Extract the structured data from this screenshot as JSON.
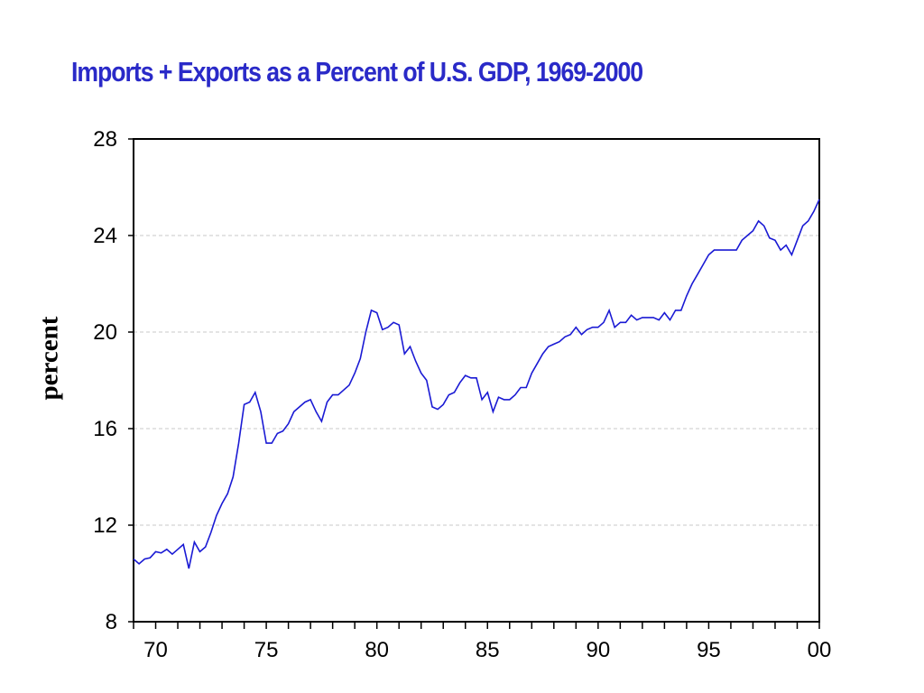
{
  "chart_data": {
    "type": "line",
    "title": "Imports + Exports as a Percent of U.S. GDP, 1969-2000",
    "xlabel": "",
    "ylabel": "percent",
    "xlim": [
      1969,
      2000
    ],
    "ylim": [
      8,
      28
    ],
    "x_ticks": [
      1970,
      1975,
      1980,
      1985,
      1990,
      1995,
      2000
    ],
    "x_tick_labels": [
      "70",
      "75",
      "80",
      "85",
      "90",
      "95",
      "00"
    ],
    "y_ticks": [
      8,
      12,
      16,
      20,
      24,
      28
    ],
    "y_tick_labels": [
      "8",
      "12",
      "16",
      "20",
      "24",
      "28"
    ],
    "grid": "horizontal dashed",
    "colors": {
      "line": "#1a1ad4",
      "title": "#2a2ac8",
      "grid": "#c8c8c8",
      "frame": "#000000"
    },
    "series": [
      {
        "x": [
          1969.0,
          1969.25,
          1969.5,
          1969.75,
          1970.0,
          1970.25,
          1970.5,
          1970.75,
          1971.0,
          1971.25,
          1971.5,
          1971.75,
          1972.0,
          1972.25,
          1972.5,
          1972.75,
          1973.0,
          1973.25,
          1973.5,
          1973.75,
          1974.0,
          1974.25,
          1974.5,
          1974.75,
          1975.0,
          1975.25,
          1975.5,
          1975.75,
          1976.0,
          1976.25,
          1976.5,
          1976.75,
          1977.0,
          1977.25,
          1977.5,
          1977.75,
          1978.0,
          1978.25,
          1978.5,
          1978.75,
          1979.0,
          1979.25,
          1979.5,
          1979.75,
          1980.0,
          1980.25,
          1980.5,
          1980.75,
          1981.0,
          1981.25,
          1981.5,
          1981.75,
          1982.0,
          1982.25,
          1982.5,
          1982.75,
          1983.0,
          1983.25,
          1983.5,
          1983.75,
          1984.0,
          1984.25,
          1984.5,
          1984.75,
          1985.0,
          1985.25,
          1985.5,
          1985.75,
          1986.0,
          1986.25,
          1986.5,
          1986.75,
          1987.0,
          1987.25,
          1987.5,
          1987.75,
          1988.0,
          1988.25,
          1988.5,
          1988.75,
          1989.0,
          1989.25,
          1989.5,
          1989.75,
          1990.0,
          1990.25,
          1990.5,
          1990.75,
          1991.0,
          1991.25,
          1991.5,
          1991.75,
          1992.0,
          1992.25,
          1992.5,
          1992.75,
          1993.0,
          1993.25,
          1993.5,
          1993.75,
          1994.0,
          1994.25,
          1994.5,
          1994.75,
          1995.0,
          1995.25,
          1995.5,
          1995.75,
          1996.0,
          1996.25,
          1996.5,
          1996.75,
          1997.0,
          1997.25,
          1997.5,
          1997.75,
          1998.0,
          1998.25,
          1998.5,
          1998.75,
          1999.0,
          1999.25,
          1999.5,
          1999.75,
          2000.0
        ],
        "values": [
          10.6,
          10.4,
          10.6,
          10.65,
          10.9,
          10.85,
          11.0,
          10.8,
          11.0,
          11.2,
          10.2,
          11.3,
          10.9,
          11.1,
          11.7,
          12.4,
          12.9,
          13.3,
          14.0,
          15.4,
          17.0,
          17.1,
          17.5,
          16.7,
          15.4,
          15.4,
          15.8,
          15.9,
          16.2,
          16.7,
          16.9,
          17.1,
          17.2,
          16.7,
          16.3,
          17.1,
          17.4,
          17.4,
          17.6,
          17.8,
          18.3,
          18.9,
          20.0,
          20.9,
          20.8,
          20.1,
          20.2,
          20.4,
          20.3,
          19.1,
          19.4,
          18.8,
          18.3,
          18.0,
          16.9,
          16.8,
          17.0,
          17.4,
          17.5,
          17.9,
          18.2,
          18.1,
          18.1,
          17.2,
          17.5,
          16.7,
          17.3,
          17.2,
          17.2,
          17.4,
          17.7,
          17.7,
          18.3,
          18.7,
          19.1,
          19.4,
          19.5,
          19.6,
          19.8,
          19.9,
          20.2,
          19.9,
          20.1,
          20.2,
          20.2,
          20.4,
          20.9,
          20.2,
          20.4,
          20.4,
          20.7,
          20.5,
          20.6,
          20.6,
          20.6,
          20.5,
          20.8,
          20.5,
          20.9,
          20.9,
          21.5,
          22.0,
          22.4,
          22.8,
          23.2,
          23.4,
          23.4,
          23.4,
          23.4,
          23.4,
          23.8,
          24.0,
          24.2,
          24.6,
          24.4,
          23.9,
          23.8,
          23.4,
          23.6,
          23.2,
          23.8,
          24.4,
          24.6,
          25.0,
          25.5
        ]
      }
    ]
  }
}
